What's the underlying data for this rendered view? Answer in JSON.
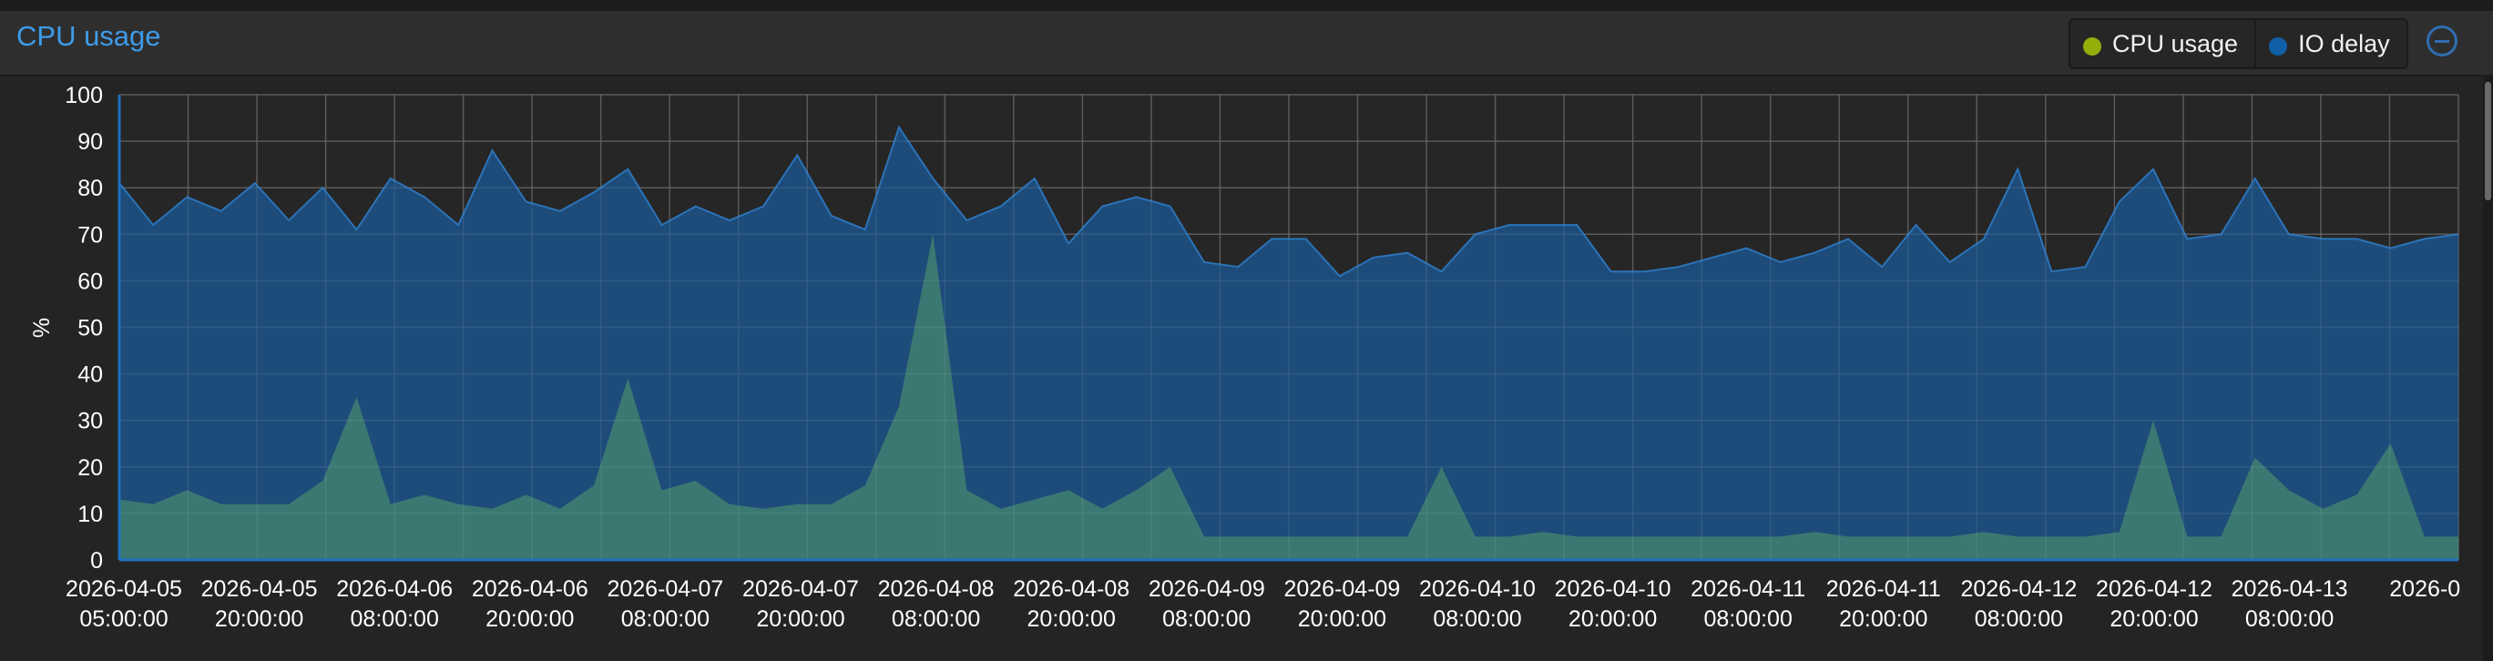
{
  "panel": {
    "title": "CPU usage"
  },
  "legend": [
    {
      "label": "CPU usage",
      "color": "#94ae0a"
    },
    {
      "label": "IO delay",
      "color": "#115fa6"
    }
  ],
  "colors": {
    "cpu_fill": "#3e7a72",
    "io_fill": "#1d4e7e",
    "io_line": "#2b73b8",
    "grid": "#4e4e4e",
    "background": "#262626"
  },
  "chart_data": {
    "type": "area",
    "ylabel": "%",
    "ylim": [
      0,
      100
    ],
    "yticks": [
      0,
      10,
      20,
      30,
      40,
      50,
      60,
      70,
      80,
      90,
      100
    ],
    "grid": true,
    "legend_position": "top-right",
    "xlabels": [
      [
        "2026-04-05",
        "05:00:00"
      ],
      [
        "2026-04-05",
        "20:00:00"
      ],
      [
        "2026-04-06",
        "08:00:00"
      ],
      [
        "2026-04-06",
        "20:00:00"
      ],
      [
        "2026-04-07",
        "08:00:00"
      ],
      [
        "2026-04-07",
        "20:00:00"
      ],
      [
        "2026-04-08",
        "08:00:00"
      ],
      [
        "2026-04-08",
        "20:00:00"
      ],
      [
        "2026-04-09",
        "08:00:00"
      ],
      [
        "2026-04-09",
        "20:00:00"
      ],
      [
        "2026-04-10",
        "08:00:00"
      ],
      [
        "2026-04-10",
        "20:00:00"
      ],
      [
        "2026-04-11",
        "08:00:00"
      ],
      [
        "2026-04-11",
        "20:00:00"
      ],
      [
        "2026-04-12",
        "08:00:00"
      ],
      [
        "2026-04-12",
        "20:00:00"
      ],
      [
        "2026-04-13",
        "08:00:00"
      ],
      [
        "2026-0",
        ""
      ]
    ],
    "series": [
      {
        "name": "IO delay",
        "values": [
          81,
          72,
          78,
          75,
          81,
          73,
          80,
          71,
          82,
          78,
          72,
          88,
          77,
          75,
          79,
          84,
          72,
          76,
          73,
          76,
          87,
          74,
          71,
          93,
          82,
          73,
          76,
          82,
          68,
          76,
          78,
          76,
          64,
          63,
          69,
          69,
          61,
          65,
          66,
          62,
          70,
          72,
          72,
          72,
          62,
          62,
          63,
          65,
          67,
          64,
          66,
          69,
          63,
          72,
          64,
          69,
          84,
          62,
          63,
          77,
          84,
          69,
          70,
          82,
          70,
          69,
          69,
          67,
          69,
          70
        ]
      },
      {
        "name": "CPU usage",
        "values": [
          13,
          12,
          15,
          12,
          12,
          12,
          17,
          35,
          12,
          14,
          12,
          11,
          14,
          11,
          16,
          39,
          15,
          17,
          12,
          11,
          12,
          12,
          16,
          33,
          70,
          15,
          11,
          13,
          15,
          11,
          15,
          20,
          5,
          5,
          5,
          5,
          5,
          5,
          5,
          20,
          5,
          5,
          6,
          5,
          5,
          5,
          5,
          5,
          5,
          5,
          6,
          5,
          5,
          5,
          5,
          6,
          5,
          5,
          5,
          6,
          30,
          5,
          5,
          22,
          15,
          11,
          14,
          25,
          5,
          5
        ]
      }
    ]
  }
}
